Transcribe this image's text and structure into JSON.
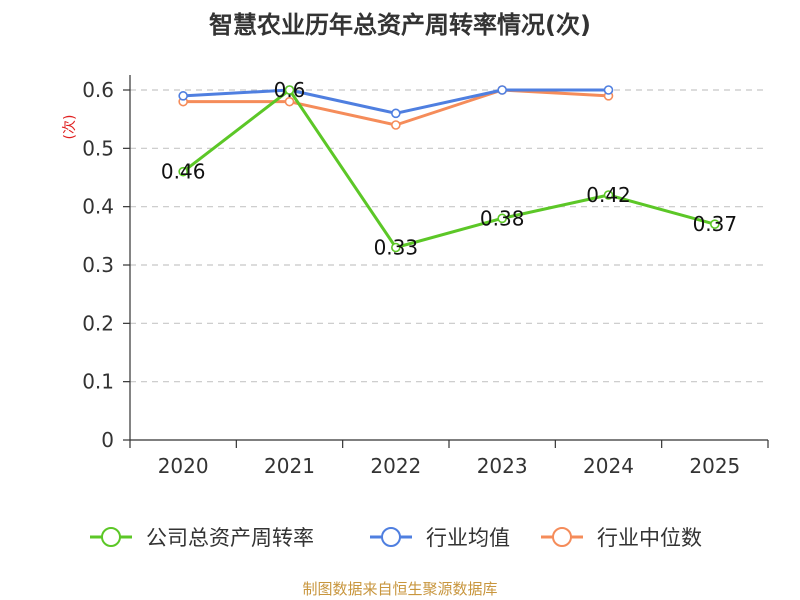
{
  "chart_data": {
    "type": "line",
    "title": "智慧农业历年总资产周转率情况(次)",
    "ylabel": "(次)",
    "xlabel": "",
    "categories": [
      "2020",
      "2021",
      "2022",
      "2023",
      "2024",
      "2025"
    ],
    "ylim": [
      0,
      0.6
    ],
    "yticks": [
      "0",
      "0.1",
      "0.2",
      "0.3",
      "0.4",
      "0.5",
      "0.6"
    ],
    "grid": true,
    "legend_position": "bottom",
    "series": [
      {
        "name": "公司总资产周转率",
        "color": "#5cc727",
        "values": [
          0.46,
          0.6,
          0.33,
          0.38,
          0.42,
          0.37
        ],
        "labels": [
          "0.46",
          "0.6",
          "0.33",
          "0.38",
          "0.42",
          "0.37"
        ]
      },
      {
        "name": "行业均值",
        "color": "#4f7fe0",
        "values": [
          0.59,
          0.6,
          0.56,
          0.6,
          0.6,
          null
        ]
      },
      {
        "name": "行业中位数",
        "color": "#f58c5a",
        "values": [
          0.58,
          0.58,
          0.54,
          0.6,
          0.59,
          null
        ]
      }
    ]
  },
  "source": "制图数据来自恒生聚源数据库"
}
